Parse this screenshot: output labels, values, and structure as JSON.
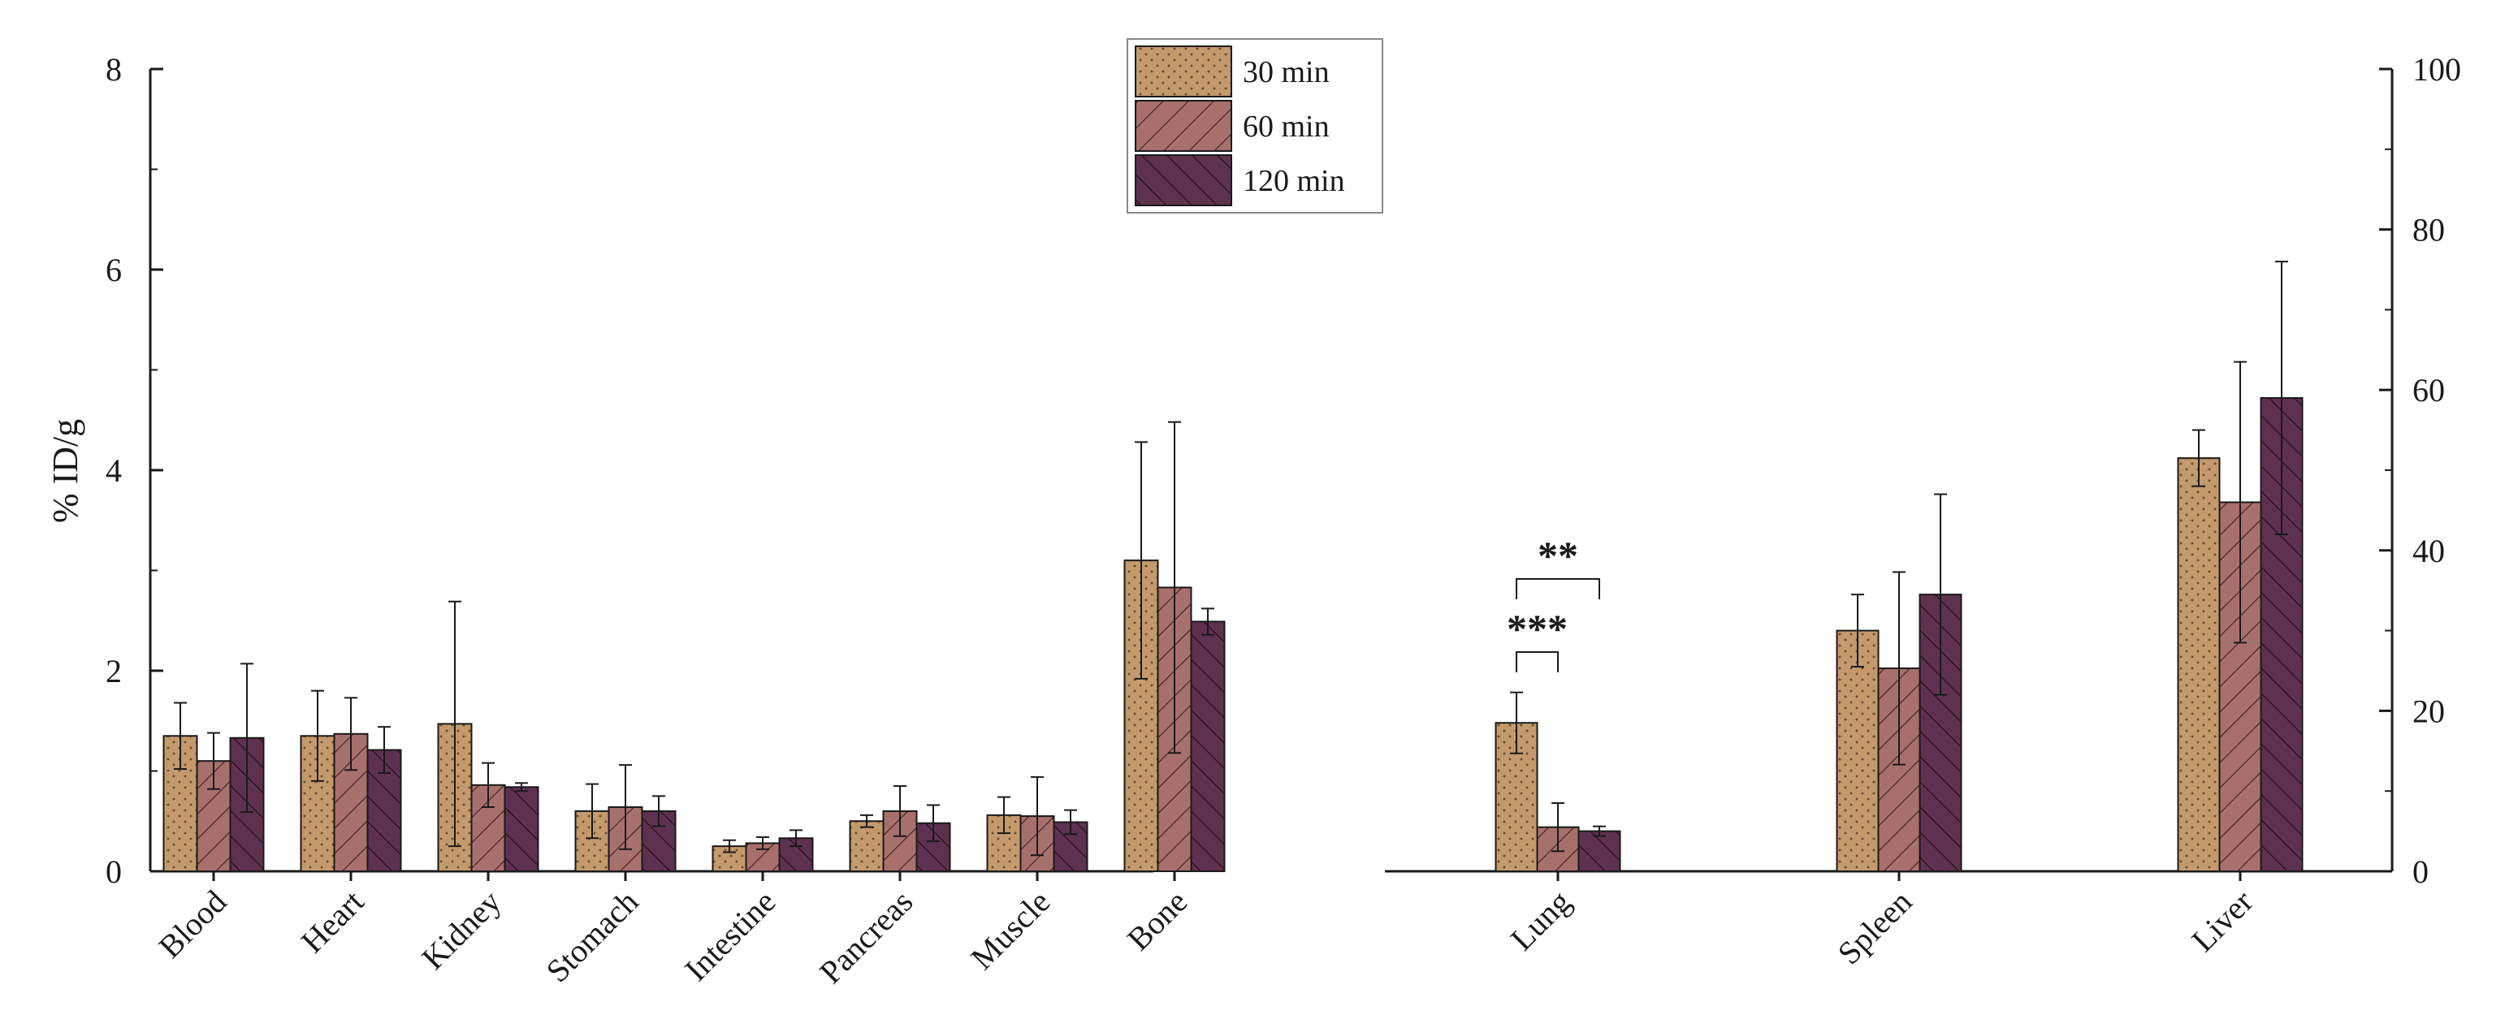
{
  "chart_data": {
    "type": "bar",
    "ylabel": "% ID/g",
    "legend_position": "top-center",
    "series": [
      {
        "name": "30 min",
        "color": "#c49a6c",
        "pattern": "dots"
      },
      {
        "name": "60 min",
        "color": "#a8706c",
        "pattern": "forward-hatch"
      },
      {
        "name": "120 min",
        "color": "#5e3150",
        "pattern": "back-hatch"
      }
    ],
    "panels": [
      {
        "axis": "left",
        "ylim": [
          0,
          8
        ],
        "yticks": [
          "0",
          "2",
          "4",
          "6",
          "8"
        ],
        "categories": [
          "Blood",
          "Heart",
          "Kidney",
          "Stomach",
          "Intestine",
          "Pancreas",
          "Muscle",
          "Bone"
        ],
        "values": [
          [
            1.35,
            1.35,
            1.47,
            0.6,
            0.25,
            0.5,
            0.56,
            3.1
          ],
          [
            1.1,
            1.37,
            0.86,
            0.64,
            0.28,
            0.6,
            0.55,
            2.83
          ],
          [
            1.33,
            1.21,
            0.84,
            0.6,
            0.33,
            0.48,
            0.49,
            2.49
          ]
        ],
        "errors": [
          [
            0.33,
            0.45,
            1.22,
            0.27,
            0.06,
            0.06,
            0.18,
            1.18
          ],
          [
            0.28,
            0.36,
            0.22,
            0.42,
            0.06,
            0.25,
            0.39,
            1.65
          ],
          [
            0.74,
            0.23,
            0.04,
            0.15,
            0.08,
            0.18,
            0.12,
            0.13
          ]
        ]
      },
      {
        "axis": "right",
        "ylim": [
          0,
          100
        ],
        "yticks": [
          "0",
          "20",
          "40",
          "60",
          "80",
          "100"
        ],
        "categories": [
          "Lung",
          "Spleen",
          "Liver"
        ],
        "values": [
          [
            18.5,
            30.0,
            51.5
          ],
          [
            5.5,
            25.3,
            46.0
          ],
          [
            5.0,
            34.5,
            59.0
          ]
        ],
        "errors": [
          [
            3.8,
            4.5,
            3.5
          ],
          [
            3.0,
            12.0,
            17.5
          ],
          [
            0.6,
            12.5,
            17.0
          ]
        ]
      }
    ],
    "annotations": [
      {
        "text": "***",
        "between": [
          "30 min",
          "60 min"
        ],
        "category": "Lung"
      },
      {
        "text": "**",
        "between": [
          "30 min",
          "120 min"
        ],
        "category": "Lung"
      }
    ]
  }
}
